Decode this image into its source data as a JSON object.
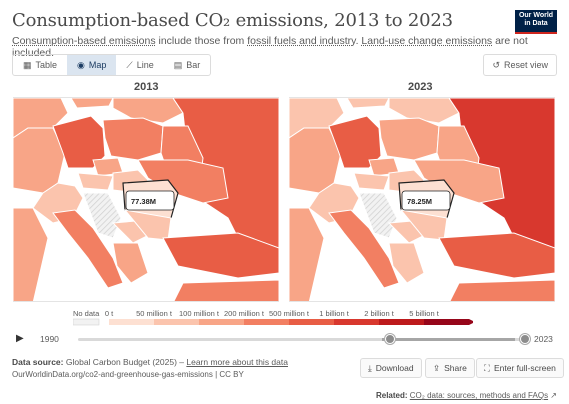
{
  "header": {
    "title": "Consumption-based CO₂ emissions, 2013 to 2023",
    "subtitle_parts": [
      "Consumption-based emissions",
      " include those from ",
      "fossil fuels and industry",
      ". ",
      "Land-use change emissions",
      " are not included."
    ],
    "logo_text": "Our World in Data"
  },
  "tabs": [
    {
      "label": "Table",
      "icon": "table-icon",
      "active": false
    },
    {
      "label": "Map",
      "icon": "globe-icon",
      "active": true
    },
    {
      "label": "Line",
      "icon": "line-chart-icon",
      "active": false
    },
    {
      "label": "Bar",
      "icon": "bar-chart-icon",
      "active": false
    }
  ],
  "reset_label": "Reset view",
  "maps": [
    {
      "year": "2013",
      "tooltip_value": "77.38M"
    },
    {
      "year": "2023",
      "tooltip_value": "78.25M"
    }
  ],
  "legend": {
    "nodata_label": "No data",
    "labels": [
      "0 t",
      "50 million t",
      "100 million t",
      "200 million t",
      "500 million t",
      "1 billion t",
      "2 billion t",
      "5 billion t"
    ],
    "colors": [
      "#fde0d2",
      "#fbc4ad",
      "#f8a587",
      "#f27f62",
      "#e85d45",
      "#d8382e",
      "#bd1a1c",
      "#96061a"
    ]
  },
  "timeline": {
    "start_label": "1990",
    "end_label": "2023",
    "start_value": 2013,
    "end_value": 2023
  },
  "footer": {
    "source_label": "Data source:",
    "source_text": "Global Carbon Budget (2025) – ",
    "source_link": "Learn more about this data",
    "url_line": "OurWorldinData.org/co2-and-greenhouse-gas-emissions | CC BY",
    "download_label": "Download",
    "share_label": "Share",
    "fullscreen_label": "Enter full-screen",
    "related_label": "Related:",
    "related_link": "CO₂ data: sources, methods and FAQs"
  }
}
